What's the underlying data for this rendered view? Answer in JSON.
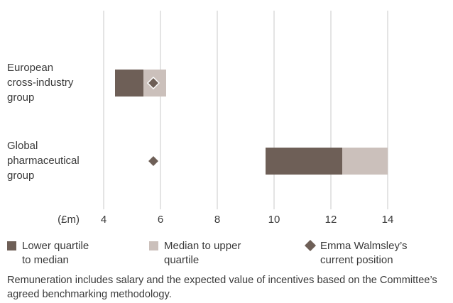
{
  "chart_data": {
    "type": "floating-bar",
    "categories": [
      "European cross-industry group",
      "Global pharmaceutical group"
    ],
    "lower_quartile": [
      4.4,
      9.7
    ],
    "median": [
      5.4,
      12.4
    ],
    "upper_quartile": [
      6.2,
      14.0
    ],
    "current_position": [
      5.75,
      5.75
    ],
    "legend": [
      {
        "name": "Lower quartile to median",
        "color": "#6e5f57"
      },
      {
        "name": "Median to upper quartile",
        "color": "#cbc0bb"
      },
      {
        "name": "Emma Walmsley’s current position",
        "color": "#6e5f57"
      }
    ],
    "x_label": "(£m)",
    "xlim": [
      4,
      14
    ],
    "xticks": [
      4,
      6,
      8,
      10,
      12,
      14
    ],
    "grid": true,
    "footnote": "Remuneration includes salary and the expected value of incentives based on the Committee’s agreed benchmarking methodology."
  }
}
